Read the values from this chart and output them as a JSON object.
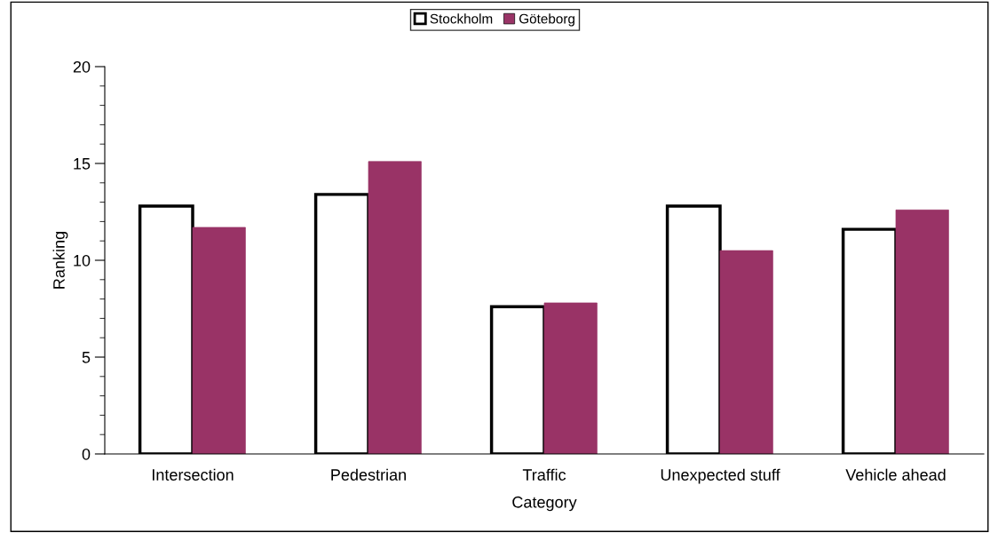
{
  "chart_data": {
    "type": "bar",
    "xlabel": "Category",
    "ylabel": "Ranking",
    "categories": [
      "Intersection",
      "Pedestrian",
      "Traffic",
      "Unexpected stuff",
      "Vehicle ahead"
    ],
    "series": [
      {
        "name": "Stockholm",
        "color": "#ffffff",
        "values": [
          12.8,
          13.4,
          7.6,
          12.8,
          11.6
        ]
      },
      {
        "name": "Göteborg",
        "color": "#993366",
        "values": [
          11.7,
          15.1,
          7.8,
          10.5,
          12.6
        ]
      }
    ],
    "ylim": [
      0,
      20
    ],
    "yticks": [
      0,
      5,
      10,
      15,
      20
    ],
    "grid": false,
    "legend": "top"
  }
}
